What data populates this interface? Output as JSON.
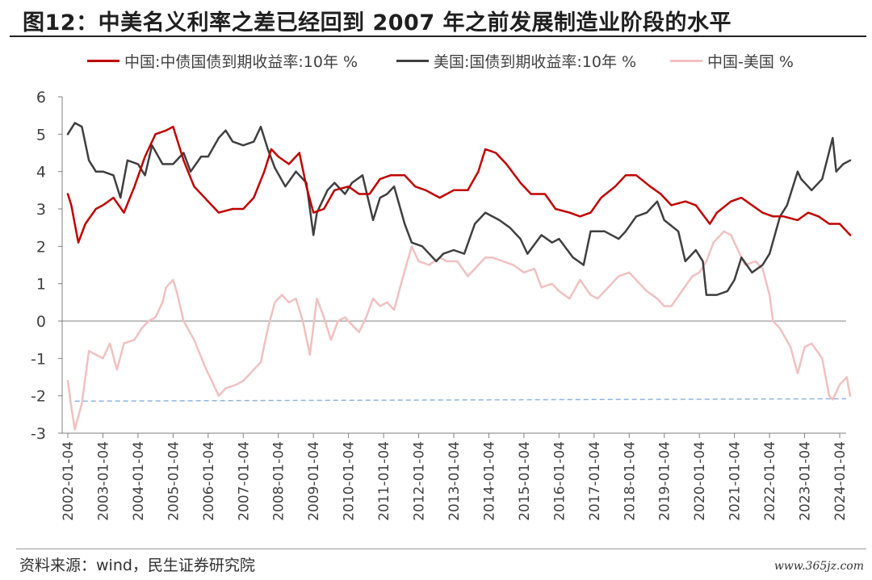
{
  "title": "图12：中美名义利率之差已经回到 2007 年之前发展制造业阶段的水平",
  "source": "资料来源：wind，民生证券研究院",
  "watermark": "www.365jz.com",
  "colors": {
    "china": "#c00000",
    "us": "#3f3f3f",
    "spread": "#f0c0c0",
    "reference": "#8fb4e0"
  },
  "chart_data": {
    "type": "line",
    "title": "",
    "xlabel": "",
    "ylabel": "",
    "ylim": [
      -3,
      6
    ],
    "yticks": [
      6,
      5,
      4,
      3,
      2,
      1,
      0,
      -1,
      -2,
      -3
    ],
    "x_ticks": [
      "2002-01-04",
      "2003-01-04",
      "2004-01-04",
      "2005-01-04",
      "2006-01-04",
      "2007-01-04",
      "2008-01-04",
      "2009-01-04",
      "2010-01-04",
      "2011-01-04",
      "2012-01-04",
      "2013-01-04",
      "2014-01-04",
      "2015-01-04",
      "2016-01-04",
      "2017-01-04",
      "2018-01-04",
      "2019-01-04",
      "2020-01-04",
      "2021-01-04",
      "2022-01-04",
      "2023-01-04",
      "2024-01-04"
    ],
    "legend": [
      "中国:中债国债到期收益率:10年 %",
      "美国:国债到期收益率:10年 %",
      "中国-美国 %"
    ],
    "legend_position": "top",
    "grid": false,
    "reference_line": {
      "value": -2.1,
      "style": "dashed"
    },
    "series": [
      {
        "name": "中国:中债国债到期收益率:10年 %",
        "points": [
          [
            2002.0,
            3.4
          ],
          [
            2002.1,
            3.1
          ],
          [
            2002.3,
            2.1
          ],
          [
            2002.5,
            2.6
          ],
          [
            2002.8,
            3.0
          ],
          [
            2003.0,
            3.1
          ],
          [
            2003.3,
            3.3
          ],
          [
            2003.6,
            2.9
          ],
          [
            2003.9,
            3.6
          ],
          [
            2004.2,
            4.4
          ],
          [
            2004.5,
            5.0
          ],
          [
            2004.8,
            5.1
          ],
          [
            2005.0,
            5.2
          ],
          [
            2005.3,
            4.3
          ],
          [
            2005.6,
            3.6
          ],
          [
            2005.9,
            3.3
          ],
          [
            2006.3,
            2.9
          ],
          [
            2006.7,
            3.0
          ],
          [
            2007.0,
            3.0
          ],
          [
            2007.3,
            3.3
          ],
          [
            2007.6,
            4.0
          ],
          [
            2007.8,
            4.6
          ],
          [
            2008.0,
            4.4
          ],
          [
            2008.3,
            4.2
          ],
          [
            2008.6,
            4.5
          ],
          [
            2008.8,
            3.6
          ],
          [
            2009.0,
            2.9
          ],
          [
            2009.3,
            3.0
          ],
          [
            2009.6,
            3.5
          ],
          [
            2010.0,
            3.6
          ],
          [
            2010.3,
            3.4
          ],
          [
            2010.6,
            3.4
          ],
          [
            2010.9,
            3.8
          ],
          [
            2011.2,
            3.9
          ],
          [
            2011.6,
            3.9
          ],
          [
            2011.9,
            3.6
          ],
          [
            2012.2,
            3.5
          ],
          [
            2012.6,
            3.3
          ],
          [
            2013.0,
            3.5
          ],
          [
            2013.4,
            3.5
          ],
          [
            2013.7,
            4.0
          ],
          [
            2013.9,
            4.6
          ],
          [
            2014.2,
            4.5
          ],
          [
            2014.5,
            4.2
          ],
          [
            2014.9,
            3.7
          ],
          [
            2015.2,
            3.4
          ],
          [
            2015.6,
            3.4
          ],
          [
            2015.9,
            3.0
          ],
          [
            2016.3,
            2.9
          ],
          [
            2016.6,
            2.8
          ],
          [
            2016.9,
            2.9
          ],
          [
            2017.2,
            3.3
          ],
          [
            2017.6,
            3.6
          ],
          [
            2017.9,
            3.9
          ],
          [
            2018.2,
            3.9
          ],
          [
            2018.6,
            3.6
          ],
          [
            2018.9,
            3.4
          ],
          [
            2019.2,
            3.1
          ],
          [
            2019.6,
            3.2
          ],
          [
            2019.9,
            3.1
          ],
          [
            2020.3,
            2.6
          ],
          [
            2020.5,
            2.9
          ],
          [
            2020.9,
            3.2
          ],
          [
            2021.2,
            3.3
          ],
          [
            2021.5,
            3.1
          ],
          [
            2021.8,
            2.9
          ],
          [
            2022.1,
            2.8
          ],
          [
            2022.4,
            2.8
          ],
          [
            2022.8,
            2.7
          ],
          [
            2023.1,
            2.9
          ],
          [
            2023.4,
            2.8
          ],
          [
            2023.7,
            2.6
          ],
          [
            2024.0,
            2.6
          ],
          [
            2024.2,
            2.4
          ],
          [
            2024.3,
            2.3
          ]
        ]
      },
      {
        "name": "美国:国债到期收益率:10年 %",
        "points": [
          [
            2002.0,
            5.0
          ],
          [
            2002.2,
            5.3
          ],
          [
            2002.4,
            5.2
          ],
          [
            2002.6,
            4.3
          ],
          [
            2002.8,
            4.0
          ],
          [
            2003.0,
            4.0
          ],
          [
            2003.3,
            3.9
          ],
          [
            2003.5,
            3.3
          ],
          [
            2003.7,
            4.3
          ],
          [
            2004.0,
            4.2
          ],
          [
            2004.2,
            3.9
          ],
          [
            2004.4,
            4.7
          ],
          [
            2004.7,
            4.2
          ],
          [
            2005.0,
            4.2
          ],
          [
            2005.3,
            4.5
          ],
          [
            2005.5,
            4.0
          ],
          [
            2005.8,
            4.4
          ],
          [
            2006.0,
            4.4
          ],
          [
            2006.3,
            4.9
          ],
          [
            2006.5,
            5.1
          ],
          [
            2006.7,
            4.8
          ],
          [
            2007.0,
            4.7
          ],
          [
            2007.3,
            4.8
          ],
          [
            2007.5,
            5.2
          ],
          [
            2007.7,
            4.6
          ],
          [
            2007.9,
            4.1
          ],
          [
            2008.2,
            3.6
          ],
          [
            2008.5,
            4.0
          ],
          [
            2008.8,
            3.7
          ],
          [
            2009.0,
            2.3
          ],
          [
            2009.1,
            2.9
          ],
          [
            2009.4,
            3.5
          ],
          [
            2009.6,
            3.7
          ],
          [
            2009.9,
            3.4
          ],
          [
            2010.1,
            3.7
          ],
          [
            2010.4,
            3.9
          ],
          [
            2010.7,
            2.7
          ],
          [
            2010.9,
            3.3
          ],
          [
            2011.1,
            3.4
          ],
          [
            2011.3,
            3.6
          ],
          [
            2011.6,
            2.6
          ],
          [
            2011.8,
            2.1
          ],
          [
            2012.1,
            2.0
          ],
          [
            2012.5,
            1.6
          ],
          [
            2012.7,
            1.8
          ],
          [
            2013.0,
            1.9
          ],
          [
            2013.3,
            1.8
          ],
          [
            2013.6,
            2.6
          ],
          [
            2013.9,
            2.9
          ],
          [
            2014.3,
            2.7
          ],
          [
            2014.6,
            2.5
          ],
          [
            2014.9,
            2.2
          ],
          [
            2015.1,
            1.8
          ],
          [
            2015.5,
            2.3
          ],
          [
            2015.8,
            2.1
          ],
          [
            2016.0,
            2.2
          ],
          [
            2016.4,
            1.7
          ],
          [
            2016.7,
            1.5
          ],
          [
            2016.9,
            2.4
          ],
          [
            2017.3,
            2.4
          ],
          [
            2017.7,
            2.2
          ],
          [
            2017.9,
            2.4
          ],
          [
            2018.2,
            2.8
          ],
          [
            2018.5,
            2.9
          ],
          [
            2018.8,
            3.2
          ],
          [
            2019.0,
            2.7
          ],
          [
            2019.4,
            2.4
          ],
          [
            2019.6,
            1.6
          ],
          [
            2019.9,
            1.9
          ],
          [
            2020.1,
            1.6
          ],
          [
            2020.2,
            0.7
          ],
          [
            2020.5,
            0.7
          ],
          [
            2020.8,
            0.8
          ],
          [
            2021.0,
            1.1
          ],
          [
            2021.2,
            1.7
          ],
          [
            2021.5,
            1.3
          ],
          [
            2021.8,
            1.5
          ],
          [
            2022.0,
            1.8
          ],
          [
            2022.3,
            2.8
          ],
          [
            2022.5,
            3.1
          ],
          [
            2022.8,
            4.0
          ],
          [
            2022.9,
            3.8
          ],
          [
            2023.2,
            3.5
          ],
          [
            2023.5,
            3.8
          ],
          [
            2023.8,
            4.9
          ],
          [
            2023.9,
            4.0
          ],
          [
            2024.1,
            4.2
          ],
          [
            2024.3,
            4.3
          ]
        ]
      },
      {
        "name": "中国-美国 %",
        "points": [
          [
            2002.0,
            -1.6
          ],
          [
            2002.1,
            -2.3
          ],
          [
            2002.2,
            -2.9
          ],
          [
            2002.4,
            -2.2
          ],
          [
            2002.6,
            -0.8
          ],
          [
            2002.8,
            -0.9
          ],
          [
            2003.0,
            -1.0
          ],
          [
            2003.2,
            -0.6
          ],
          [
            2003.4,
            -1.3
          ],
          [
            2003.6,
            -0.6
          ],
          [
            2003.9,
            -0.5
          ],
          [
            2004.1,
            -0.2
          ],
          [
            2004.3,
            0.0
          ],
          [
            2004.5,
            0.1
          ],
          [
            2004.7,
            0.5
          ],
          [
            2004.8,
            0.9
          ],
          [
            2005.0,
            1.1
          ],
          [
            2005.1,
            0.8
          ],
          [
            2005.3,
            0.0
          ],
          [
            2005.6,
            -0.5
          ],
          [
            2005.9,
            -1.2
          ],
          [
            2006.1,
            -1.6
          ],
          [
            2006.3,
            -2.0
          ],
          [
            2006.5,
            -1.8
          ],
          [
            2006.8,
            -1.7
          ],
          [
            2007.0,
            -1.6
          ],
          [
            2007.3,
            -1.3
          ],
          [
            2007.5,
            -1.1
          ],
          [
            2007.7,
            -0.2
          ],
          [
            2007.9,
            0.5
          ],
          [
            2008.1,
            0.7
          ],
          [
            2008.3,
            0.5
          ],
          [
            2008.5,
            0.6
          ],
          [
            2008.7,
            0.0
          ],
          [
            2008.9,
            -0.9
          ],
          [
            2009.1,
            0.6
          ],
          [
            2009.3,
            0.1
          ],
          [
            2009.5,
            -0.5
          ],
          [
            2009.7,
            0.0
          ],
          [
            2009.9,
            0.1
          ],
          [
            2010.1,
            -0.1
          ],
          [
            2010.3,
            -0.3
          ],
          [
            2010.5,
            0.1
          ],
          [
            2010.7,
            0.6
          ],
          [
            2010.9,
            0.4
          ],
          [
            2011.1,
            0.5
          ],
          [
            2011.3,
            0.3
          ],
          [
            2011.5,
            1.0
          ],
          [
            2011.8,
            2.0
          ],
          [
            2012.0,
            1.6
          ],
          [
            2012.3,
            1.5
          ],
          [
            2012.6,
            1.7
          ],
          [
            2012.8,
            1.6
          ],
          [
            2013.1,
            1.6
          ],
          [
            2013.4,
            1.2
          ],
          [
            2013.6,
            1.4
          ],
          [
            2013.9,
            1.7
          ],
          [
            2014.1,
            1.7
          ],
          [
            2014.4,
            1.6
          ],
          [
            2014.7,
            1.5
          ],
          [
            2015.0,
            1.3
          ],
          [
            2015.3,
            1.4
          ],
          [
            2015.5,
            0.9
          ],
          [
            2015.8,
            1.0
          ],
          [
            2016.0,
            0.8
          ],
          [
            2016.3,
            0.6
          ],
          [
            2016.6,
            1.1
          ],
          [
            2016.9,
            0.7
          ],
          [
            2017.1,
            0.6
          ],
          [
            2017.4,
            0.9
          ],
          [
            2017.7,
            1.2
          ],
          [
            2018.0,
            1.3
          ],
          [
            2018.3,
            1.0
          ],
          [
            2018.5,
            0.8
          ],
          [
            2018.8,
            0.6
          ],
          [
            2019.0,
            0.4
          ],
          [
            2019.2,
            0.4
          ],
          [
            2019.5,
            0.8
          ],
          [
            2019.8,
            1.2
          ],
          [
            2020.0,
            1.3
          ],
          [
            2020.2,
            1.6
          ],
          [
            2020.4,
            2.1
          ],
          [
            2020.7,
            2.4
          ],
          [
            2020.9,
            2.3
          ],
          [
            2021.1,
            1.9
          ],
          [
            2021.3,
            1.5
          ],
          [
            2021.6,
            1.6
          ],
          [
            2021.8,
            1.4
          ],
          [
            2022.0,
            0.7
          ],
          [
            2022.1,
            0.0
          ],
          [
            2022.3,
            -0.2
          ],
          [
            2022.6,
            -0.7
          ],
          [
            2022.8,
            -1.4
          ],
          [
            2023.0,
            -0.7
          ],
          [
            2023.2,
            -0.6
          ],
          [
            2023.5,
            -1.0
          ],
          [
            2023.7,
            -2.0
          ],
          [
            2023.8,
            -2.1
          ],
          [
            2024.0,
            -1.7
          ],
          [
            2024.2,
            -1.5
          ],
          [
            2024.3,
            -2.0
          ]
        ]
      }
    ]
  }
}
